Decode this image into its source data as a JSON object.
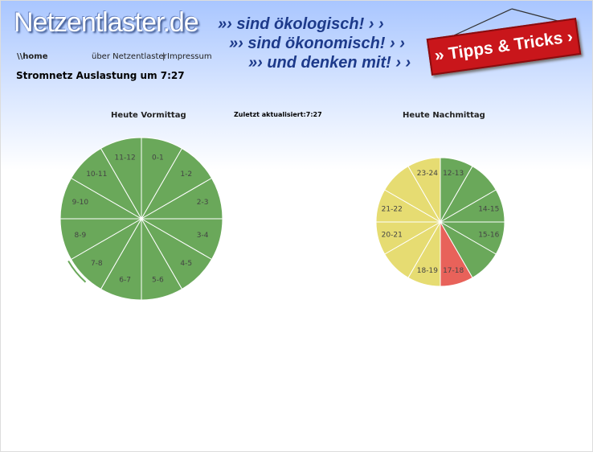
{
  "header": {
    "logo": "Netzentlaster.de",
    "taglines": [
      "»› sind ökologisch! › ›",
      "»› sind ökonomisch! › ›",
      "»› und denken mit! › ›"
    ],
    "tips_button": "» Tipps & Tricks ›"
  },
  "nav": {
    "home": "\\\\home",
    "links": [
      "über Netzentlaster",
      "Impressum"
    ],
    "separator": "|"
  },
  "heading": "Stromnetz Auslastung um 7:27",
  "updated": "Zuletzt aktualisiert:7:27",
  "clocks": [
    {
      "title": "Heute Vormittag",
      "segments": [
        {
          "label": "0-1",
          "color": "#6aa85a"
        },
        {
          "label": "1-2",
          "color": "#6aa85a"
        },
        {
          "label": "2-3",
          "color": "#6aa85a"
        },
        {
          "label": "3-4",
          "color": "#6aa85a"
        },
        {
          "label": "4-5",
          "color": "#6aa85a"
        },
        {
          "label": "5-6",
          "color": "#6aa85a"
        },
        {
          "label": "6-7",
          "color": "#6aa85a"
        },
        {
          "label": "7-8",
          "color": "#6aa85a"
        },
        {
          "label": "8-9",
          "color": "#6aa85a"
        },
        {
          "label": "9-10",
          "color": "#6aa85a"
        },
        {
          "label": "10-11",
          "color": "#6aa85a"
        },
        {
          "label": "11-12",
          "color": "#6aa85a"
        }
      ]
    },
    {
      "title": "Heute Nachmittag",
      "segments": [
        {
          "label": "12-13",
          "color": "#6aa85a"
        },
        {
          "label": null,
          "color": "#6aa85a"
        },
        {
          "label": "14-15",
          "color": "#6aa85a"
        },
        {
          "label": "15-16",
          "color": "#6aa85a"
        },
        {
          "label": null,
          "color": "#6aa85a"
        },
        {
          "label": "17-18",
          "color": "#e8625a"
        },
        {
          "label": "18-19",
          "color": "#e6dc72"
        },
        {
          "label": null,
          "color": "#e6dc72"
        },
        {
          "label": "20-21",
          "color": "#e6dc72"
        },
        {
          "label": "21-22",
          "color": "#e6dc72"
        },
        {
          "label": null,
          "color": "#e6dc72"
        },
        {
          "label": "23-24",
          "color": "#e6dc72"
        }
      ]
    }
  ]
}
